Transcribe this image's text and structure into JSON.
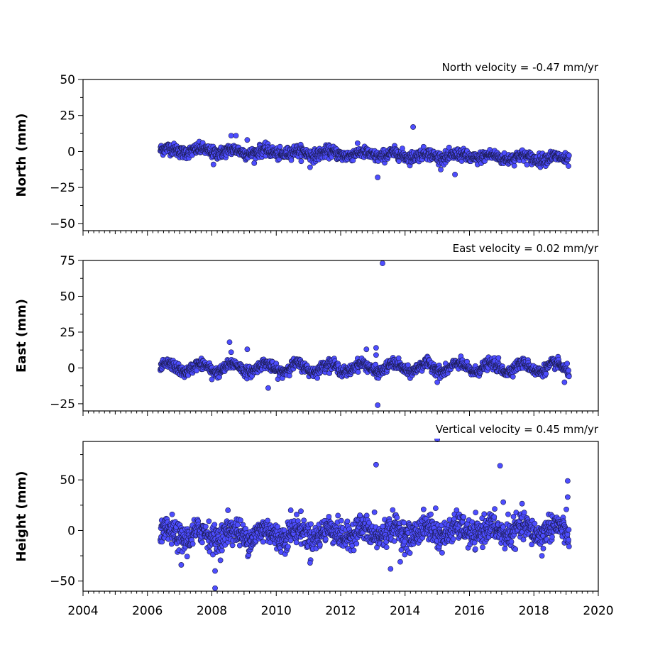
{
  "chart_data": [
    {
      "type": "scatter",
      "title": "North velocity = -0.47 mm/yr",
      "ylabel": "North (mm)",
      "ylim": [
        -55,
        50
      ],
      "yticks": [
        -50,
        -25,
        0,
        25,
        50
      ],
      "xlim": [
        2004,
        2020
      ],
      "marker_color": "#4d4dff",
      "marker_edge": "#1a1a4d",
      "trend": {
        "start": 2006.4,
        "end": 2019.1,
        "value_at_start": 1.0,
        "slope_mm_per_yr": -0.47,
        "seasonal_amp": 1.5,
        "noise": 2.0
      },
      "outliers": [
        {
          "x": 2008.6,
          "y": 11
        },
        {
          "x": 2008.75,
          "y": 11
        },
        {
          "x": 2008.05,
          "y": -9
        },
        {
          "x": 2009.1,
          "y": 8
        },
        {
          "x": 2011.05,
          "y": -11
        },
        {
          "x": 2013.15,
          "y": -18
        },
        {
          "x": 2014.25,
          "y": 17
        },
        {
          "x": 2015.55,
          "y": -16
        }
      ]
    },
    {
      "type": "scatter",
      "title": "East velocity = 0.02 mm/yr",
      "ylabel": "East (mm)",
      "ylim": [
        -30,
        75
      ],
      "yticks": [
        -25,
        0,
        25,
        50,
        75
      ],
      "xlim": [
        2004,
        2020
      ],
      "marker_color": "#4d4dff",
      "marker_edge": "#1a1a4d",
      "trend": {
        "start": 2006.4,
        "end": 2019.1,
        "value_at_start": 0.0,
        "slope_mm_per_yr": 0.02,
        "seasonal_amp": 3.0,
        "noise": 1.8
      },
      "outliers": [
        {
          "x": 2008.55,
          "y": 18
        },
        {
          "x": 2008.6,
          "y": 11
        },
        {
          "x": 2009.1,
          "y": 13
        },
        {
          "x": 2009.75,
          "y": -14
        },
        {
          "x": 2008.0,
          "y": -8
        },
        {
          "x": 2012.8,
          "y": 13
        },
        {
          "x": 2013.1,
          "y": 14
        },
        {
          "x": 2013.1,
          "y": 9
        },
        {
          "x": 2013.3,
          "y": 73
        },
        {
          "x": 2013.15,
          "y": -26
        },
        {
          "x": 2015.0,
          "y": -10
        },
        {
          "x": 2016.9,
          "y": 7
        },
        {
          "x": 2018.95,
          "y": -10
        }
      ]
    },
    {
      "type": "scatter",
      "title": "Vertical velocity = 0.45 mm/yr",
      "ylabel": "Height (mm)",
      "xlabel": "",
      "ylim": [
        -60,
        88
      ],
      "yticks": [
        -50,
        0,
        50
      ],
      "xlim": [
        2004,
        2020
      ],
      "xticks": [
        2004,
        2006,
        2008,
        2010,
        2012,
        2014,
        2016,
        2018,
        2020
      ],
      "marker_color": "#4d4dff",
      "marker_edge": "#1a1a4d",
      "trend": {
        "start": 2006.4,
        "end": 2019.1,
        "value_at_start": -5.0,
        "slope_mm_per_yr": 0.45,
        "seasonal_amp": 5.0,
        "noise": 6.5
      },
      "outliers": [
        {
          "x": 2013.1,
          "y": 65
        },
        {
          "x": 2015.0,
          "y": 90
        },
        {
          "x": 2016.95,
          "y": 64
        },
        {
          "x": 2019.05,
          "y": 49
        },
        {
          "x": 2019.05,
          "y": 33
        },
        {
          "x": 2017.05,
          "y": 28
        },
        {
          "x": 2017.2,
          "y": 16
        },
        {
          "x": 2008.1,
          "y": -57
        },
        {
          "x": 2008.1,
          "y": -40
        },
        {
          "x": 2007.05,
          "y": -34
        },
        {
          "x": 2011.05,
          "y": -32
        },
        {
          "x": 2013.55,
          "y": -38
        },
        {
          "x": 2013.85,
          "y": -31
        },
        {
          "x": 2010.45,
          "y": 20
        },
        {
          "x": 2008.5,
          "y": 20
        },
        {
          "x": 2013.05,
          "y": 18
        },
        {
          "x": 2014.8,
          "y": 16
        },
        {
          "x": 2014.95,
          "y": 22
        },
        {
          "x": 2018.25,
          "y": -25
        },
        {
          "x": 2012.6,
          "y": 15
        }
      ]
    }
  ]
}
